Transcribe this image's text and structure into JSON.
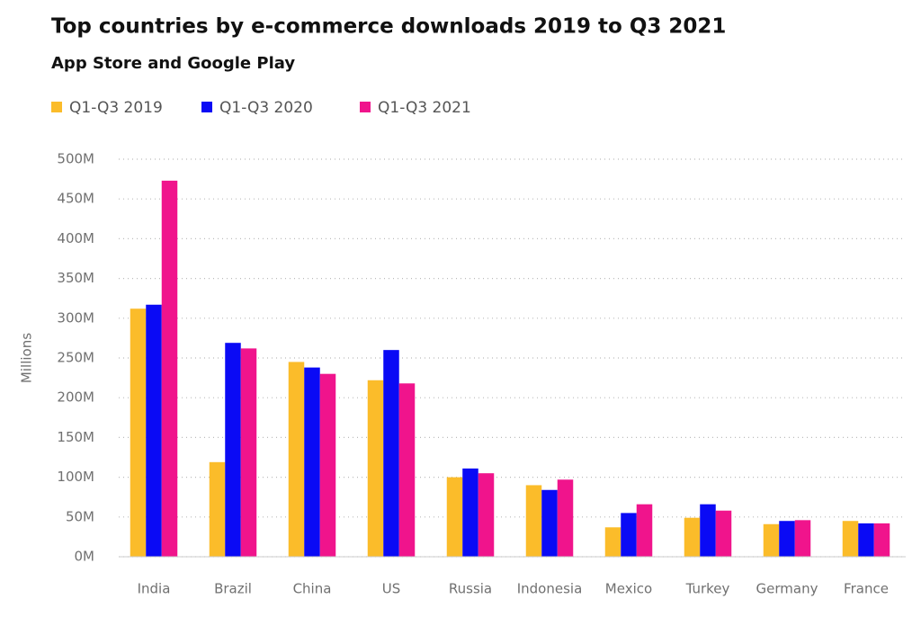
{
  "chart_data": {
    "type": "bar",
    "title": "Top countries by e-commerce downloads 2019 to Q3 2021",
    "subtitle": "App Store and Google Play",
    "y_label": "Millions",
    "categories": [
      "India",
      "Brazil",
      "China",
      "US",
      "Russia",
      "Indonesia",
      "Mexico",
      "Turkey",
      "Germany",
      "France"
    ],
    "series": [
      {
        "name": "Q1-Q3 2019",
        "color": "#fbbc2a",
        "values": [
          312,
          119,
          245,
          222,
          100,
          90,
          37,
          49,
          41,
          45
        ]
      },
      {
        "name": "Q1-Q3 2020",
        "color": "#0a0af5",
        "values": [
          317,
          269,
          238,
          260,
          111,
          84,
          55,
          66,
          45,
          42
        ]
      },
      {
        "name": "Q1-Q3 2021",
        "color": "#f0148c",
        "values": [
          473,
          262,
          230,
          218,
          105,
          97,
          66,
          58,
          46,
          42
        ]
      }
    ],
    "ylim": [
      0,
      500
    ],
    "yticks": [
      {
        "value": 0,
        "label": "0M"
      },
      {
        "value": 50,
        "label": "50M"
      },
      {
        "value": 100,
        "label": "100M"
      },
      {
        "value": 150,
        "label": "150M"
      },
      {
        "value": 200,
        "label": "200M"
      },
      {
        "value": 250,
        "label": "250M"
      },
      {
        "value": 300,
        "label": "300M"
      },
      {
        "value": 350,
        "label": "350M"
      },
      {
        "value": 400,
        "label": "400M"
      },
      {
        "value": 450,
        "label": "450M"
      },
      {
        "value": 500,
        "label": "500M"
      }
    ],
    "grid": true,
    "legend": "top-left"
  }
}
